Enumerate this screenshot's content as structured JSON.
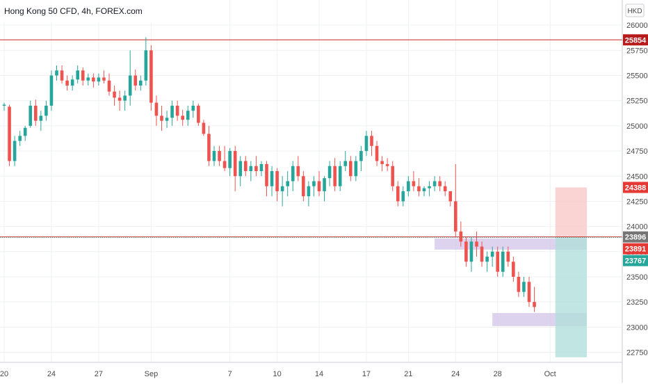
{
  "header": {
    "title": "Hong Kong 50 CFD, 4h, FOREX.com"
  },
  "currency": "HKD",
  "colors": {
    "up": "#26a69a",
    "down": "#ef5350",
    "level_line": "#c62828",
    "grid": "#eef0f3",
    "badge_red": "#e53935",
    "badge_dark_red": "#b71c1c",
    "badge_grey": "#757575",
    "badge_green": "#26a69a",
    "zone": "#d1c4e9",
    "target_zone": "#f8c9c8",
    "stop_zone": "#b2dfdb"
  },
  "chart_data": {
    "type": "candlestick",
    "title": "Hong Kong 50 CFD, 4h, FOREX.com",
    "ylim": [
      22650,
      26250
    ],
    "y_ticks": [
      "22750",
      "23000",
      "23250",
      "23500",
      "23750",
      "24000",
      "24250",
      "24500",
      "24750",
      "25000",
      "25250",
      "25500",
      "25750",
      "26000"
    ],
    "x_ticks": [
      "20",
      "24",
      "27",
      "Sep",
      "7",
      "10",
      "14",
      "17",
      "21",
      "24",
      "28",
      "Oct"
    ],
    "x_tick_bar_index": [
      0,
      9,
      18,
      28,
      43,
      52,
      60,
      69,
      77,
      86,
      94,
      104
    ],
    "grid": true,
    "legend": "none",
    "horizontal_lines": [
      {
        "value": 25854,
        "color": "#c62828",
        "style": "solid"
      },
      {
        "value": 23896,
        "color": "#c62828",
        "style": "solid"
      },
      {
        "value": 23891,
        "color": "#26a69a",
        "style": "dotted"
      }
    ],
    "zones": [
      {
        "from_bar": 82,
        "to_bar": 111,
        "low": 23770,
        "high": 23880,
        "color": "#d1c4e9"
      },
      {
        "from_bar": 93,
        "to_bar": 111,
        "low": 23010,
        "high": 23140,
        "color": "#d1c4e9"
      }
    ],
    "position_tool": {
      "from_bar": 105,
      "to_bar": 111,
      "entry": 23891,
      "target": 24388,
      "stop": 22700
    },
    "price_labels": [
      {
        "label": "25854",
        "value": 25854,
        "color": "#b71c1c"
      },
      {
        "label": "24388",
        "value": 24388,
        "color": "#e53935"
      },
      {
        "label": "23896",
        "value": 23896,
        "color": "#757575"
      },
      {
        "label": "23891",
        "value": 23891,
        "color": "#e53935"
      },
      {
        "label": "23767",
        "value": 23767,
        "color": "#26a69a"
      }
    ],
    "candles": [
      [
        25200,
        25230,
        25150,
        25210
      ],
      [
        25190,
        25210,
        24600,
        24650
      ],
      [
        24650,
        24900,
        24600,
        24850
      ],
      [
        24850,
        24950,
        24800,
        24900
      ],
      [
        24900,
        25000,
        24850,
        24980
      ],
      [
        25000,
        25250,
        24980,
        25200
      ],
      [
        25200,
        25260,
        25000,
        25050
      ],
      [
        25050,
        25150,
        24950,
        25100
      ],
      [
        25100,
        25250,
        25050,
        25200
      ],
      [
        25200,
        25550,
        25150,
        25500
      ],
      [
        25500,
        25600,
        25450,
        25550
      ],
      [
        25550,
        25600,
        25420,
        25450
      ],
      [
        25450,
        25500,
        25350,
        25400
      ],
      [
        25400,
        25500,
        25350,
        25460
      ],
      [
        25460,
        25600,
        25420,
        25550
      ],
      [
        25550,
        25580,
        25400,
        25450
      ],
      [
        25450,
        25520,
        25400,
        25480
      ],
      [
        25480,
        25520,
        25380,
        25440
      ],
      [
        25440,
        25520,
        25400,
        25480
      ],
      [
        25480,
        25550,
        25420,
        25450
      ],
      [
        25450,
        25520,
        25300,
        25340
      ],
      [
        25340,
        25400,
        25200,
        25280
      ],
      [
        25280,
        25350,
        25150,
        25250
      ],
      [
        25250,
        25350,
        25150,
        25300
      ],
      [
        25300,
        25750,
        25200,
        25500
      ],
      [
        25500,
        25560,
        25350,
        25400
      ],
      [
        25400,
        25500,
        25350,
        25450
      ],
      [
        25450,
        25880,
        25400,
        25750
      ],
      [
        25750,
        25800,
        25150,
        25230
      ],
      [
        25230,
        25300,
        25000,
        25100
      ],
      [
        25100,
        25200,
        24950,
        25050
      ],
      [
        25050,
        25150,
        24980,
        25080
      ],
      [
        25080,
        25250,
        25000,
        25200
      ],
      [
        25200,
        25250,
        25050,
        25100
      ],
      [
        25100,
        25160,
        25000,
        25060
      ],
      [
        25060,
        25200,
        25000,
        25150
      ],
      [
        25150,
        25250,
        25080,
        25200
      ],
      [
        25200,
        25220,
        25000,
        25030
      ],
      [
        25030,
        25060,
        24900,
        24920
      ],
      [
        24920,
        25000,
        24600,
        24650
      ],
      [
        24650,
        24800,
        24600,
        24750
      ],
      [
        24750,
        24800,
        24600,
        24650
      ],
      [
        24650,
        24800,
        24550,
        24580
      ],
      [
        24580,
        24780,
        24500,
        24750
      ],
      [
        24750,
        24800,
        24350,
        24500
      ],
      [
        24500,
        24700,
        24400,
        24650
      ],
      [
        24650,
        24700,
        24500,
        24550
      ],
      [
        24550,
        24650,
        24450,
        24600
      ],
      [
        24600,
        24700,
        24500,
        24550
      ],
      [
        24550,
        24650,
        24500,
        24620
      ],
      [
        24620,
        24650,
        24300,
        24400
      ],
      [
        24400,
        24600,
        24300,
        24550
      ],
      [
        24550,
        24580,
        24250,
        24350
      ],
      [
        24350,
        24500,
        24200,
        24400
      ],
      [
        24400,
        24550,
        24300,
        24450
      ],
      [
        24450,
        24650,
        24350,
        24600
      ],
      [
        24600,
        24700,
        24450,
        24500
      ],
      [
        24500,
        24550,
        24250,
        24300
      ],
      [
        24300,
        24450,
        24200,
        24400
      ],
      [
        24400,
        24500,
        24300,
        24450
      ],
      [
        24450,
        24550,
        24300,
        24350
      ],
      [
        24350,
        24500,
        24250,
        24480
      ],
      [
        24480,
        24650,
        24400,
        24600
      ],
      [
        24600,
        24680,
        24350,
        24400
      ],
      [
        24400,
        24650,
        24350,
        24600
      ],
      [
        24600,
        24750,
        24550,
        24650
      ],
      [
        24650,
        24700,
        24450,
        24500
      ],
      [
        24500,
        24700,
        24450,
        24650
      ],
      [
        24650,
        24800,
        24550,
        24750
      ],
      [
        24750,
        24950,
        24700,
        24900
      ],
      [
        24900,
        24950,
        24700,
        24800
      ],
      [
        24800,
        24850,
        24600,
        24650
      ],
      [
        24650,
        24700,
        24550,
        24620
      ],
      [
        24620,
        24680,
        24550,
        24600
      ],
      [
        24600,
        24650,
        24350,
        24400
      ],
      [
        24400,
        24450,
        24200,
        24250
      ],
      [
        24250,
        24400,
        24200,
        24350
      ],
      [
        24350,
        24500,
        24300,
        24450
      ],
      [
        24450,
        24550,
        24350,
        24400
      ],
      [
        24400,
        24480,
        24300,
        24350
      ],
      [
        24350,
        24400,
        24300,
        24380
      ],
      [
        24380,
        24450,
        24300,
        24400
      ],
      [
        24400,
        24500,
        24350,
        24450
      ],
      [
        24450,
        24500,
        24350,
        24400
      ],
      [
        24400,
        24450,
        24300,
        24350
      ],
      [
        24350,
        24350,
        24200,
        24250
      ],
      [
        24250,
        24620,
        23900,
        23950
      ],
      [
        23950,
        24050,
        23800,
        23850
      ],
      [
        23850,
        23900,
        23600,
        23650
      ],
      [
        23650,
        23900,
        23550,
        23850
      ],
      [
        23850,
        23950,
        23700,
        23800
      ],
      [
        23800,
        23850,
        23600,
        23650
      ],
      [
        23650,
        23750,
        23550,
        23700
      ],
      [
        23700,
        23800,
        23600,
        23750
      ],
      [
        23750,
        23800,
        23500,
        23550
      ],
      [
        23550,
        23800,
        23500,
        23750
      ],
      [
        23750,
        23800,
        23600,
        23650
      ],
      [
        23650,
        23700,
        23450,
        23500
      ],
      [
        23500,
        23550,
        23300,
        23350
      ],
      [
        23350,
        23500,
        23300,
        23450
      ],
      [
        23450,
        23500,
        23200,
        23250
      ],
      [
        23250,
        23400,
        23150,
        23200
      ]
    ]
  }
}
